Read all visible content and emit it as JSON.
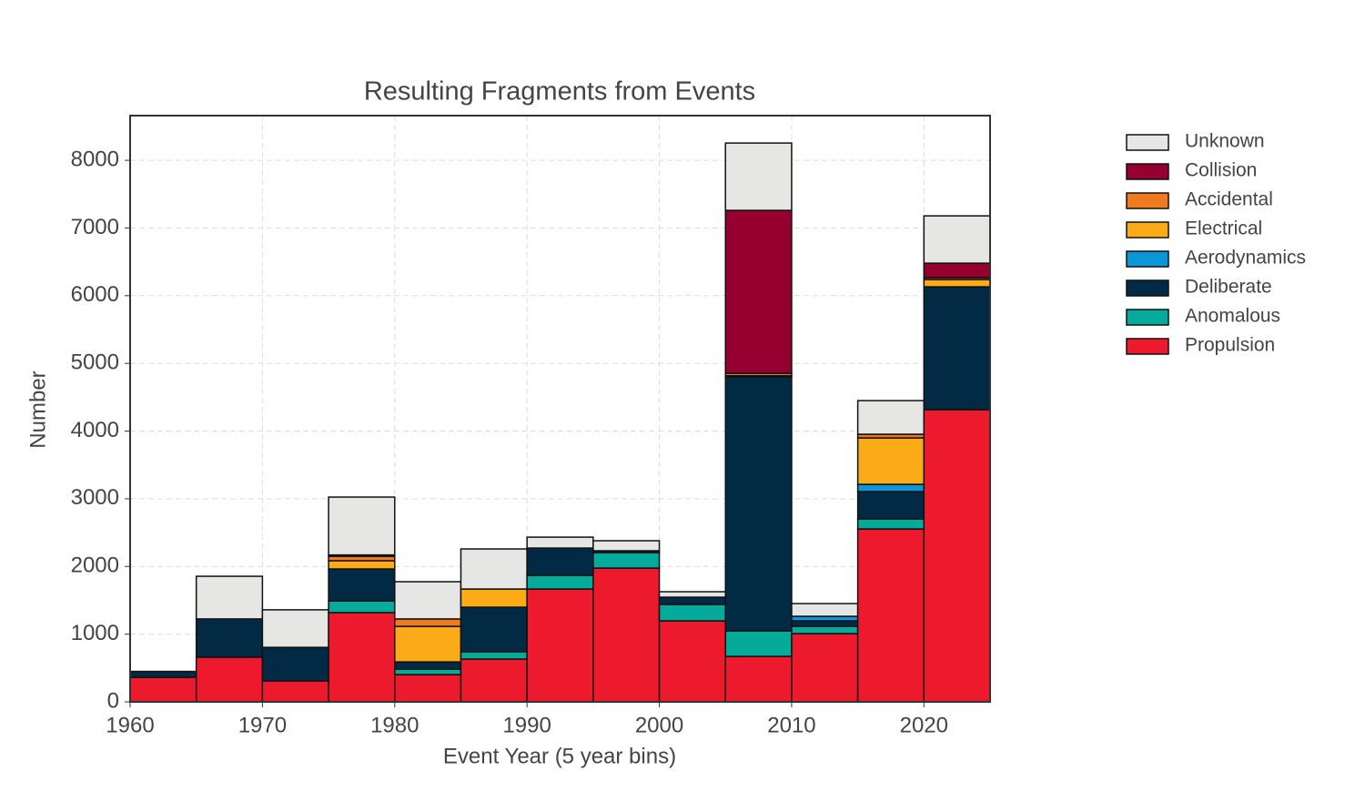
{
  "chart_data": {
    "type": "histogram",
    "title": "Resulting Fragments from Events",
    "xlabel": "Event Year (5 year bins)",
    "ylabel": "Number",
    "bins": [
      1960,
      1965,
      1970,
      1975,
      1980,
      1985,
      1990,
      1995,
      2000,
      2005,
      2010,
      2015,
      2020,
      2025
    ],
    "series": [
      {
        "name": "Propulsion",
        "color": "#ed1a2e",
        "values": [
          360,
          660,
          310,
          1318,
          403,
          632,
          1667,
          1976,
          1197,
          672,
          1008,
          2554,
          4316
        ]
      },
      {
        "name": "Anomalous",
        "color": "#04ab9a",
        "values": [
          0,
          0,
          0,
          172,
          81,
          108,
          202,
          229,
          242,
          377,
          108,
          148,
          0
        ]
      },
      {
        "name": "Deliberate",
        "color": "#022a44",
        "values": [
          90,
          565,
          495,
          473,
          106,
          658,
          403,
          27,
          107,
          3751,
          81,
          404,
          1815
        ]
      },
      {
        "name": "Aerodynamics",
        "color": "#0a96d7",
        "values": [
          0,
          0,
          0,
          0,
          0,
          0,
          0,
          0,
          0,
          20,
          67,
          107,
          0
        ]
      },
      {
        "name": "Electrical",
        "color": "#fbab18",
        "values": [
          0,
          0,
          0,
          122,
          525,
          269,
          0,
          0,
          0,
          33,
          0,
          686,
          107
        ]
      },
      {
        "name": "Accidental",
        "color": "#f07a1f",
        "values": [
          0,
          0,
          0,
          65,
          110,
          0,
          0,
          0,
          0,
          0,
          0,
          54,
          27
        ]
      },
      {
        "name": "Collision",
        "color": "#950030",
        "values": [
          0,
          0,
          0,
          20,
          0,
          0,
          0,
          0,
          0,
          2407,
          0,
          0,
          215
        ]
      },
      {
        "name": "Unknown",
        "color": "#e6e6e4",
        "values": [
          0,
          630,
          555,
          855,
          550,
          592,
          161,
          148,
          81,
          995,
          188,
          497,
          699
        ]
      }
    ],
    "xlim": [
      1960,
      2025
    ],
    "xticks": [
      1960,
      1970,
      1980,
      1990,
      2000,
      2010,
      2020
    ],
    "ylim": [
      0,
      8660
    ],
    "yticks": [
      0,
      1000,
      2000,
      3000,
      4000,
      5000,
      6000,
      7000,
      8000
    ],
    "grid": true,
    "legend": "outside right"
  }
}
